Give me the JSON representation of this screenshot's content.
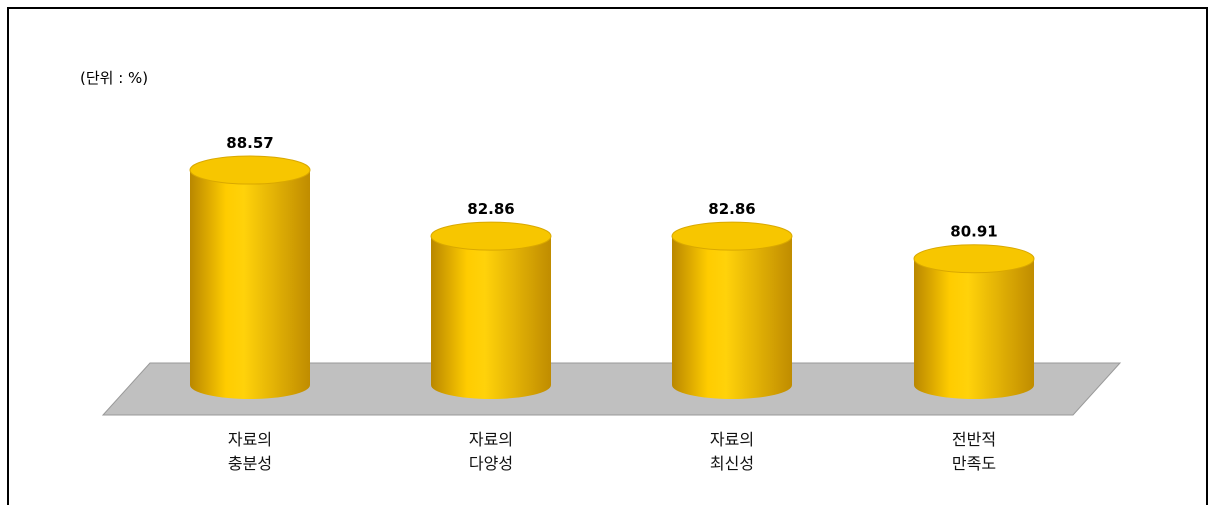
{
  "chart_data": {
    "type": "bar3d",
    "unit_label": "(단위 : %)",
    "categories": [
      "자료의\n충분성",
      "자료의\n다양성",
      "자료의\n최신성",
      "전반적\n만족도"
    ],
    "values": [
      88.57,
      82.86,
      82.86,
      80.91
    ],
    "color": "#f2b800",
    "ylim": [
      70,
      90
    ]
  }
}
